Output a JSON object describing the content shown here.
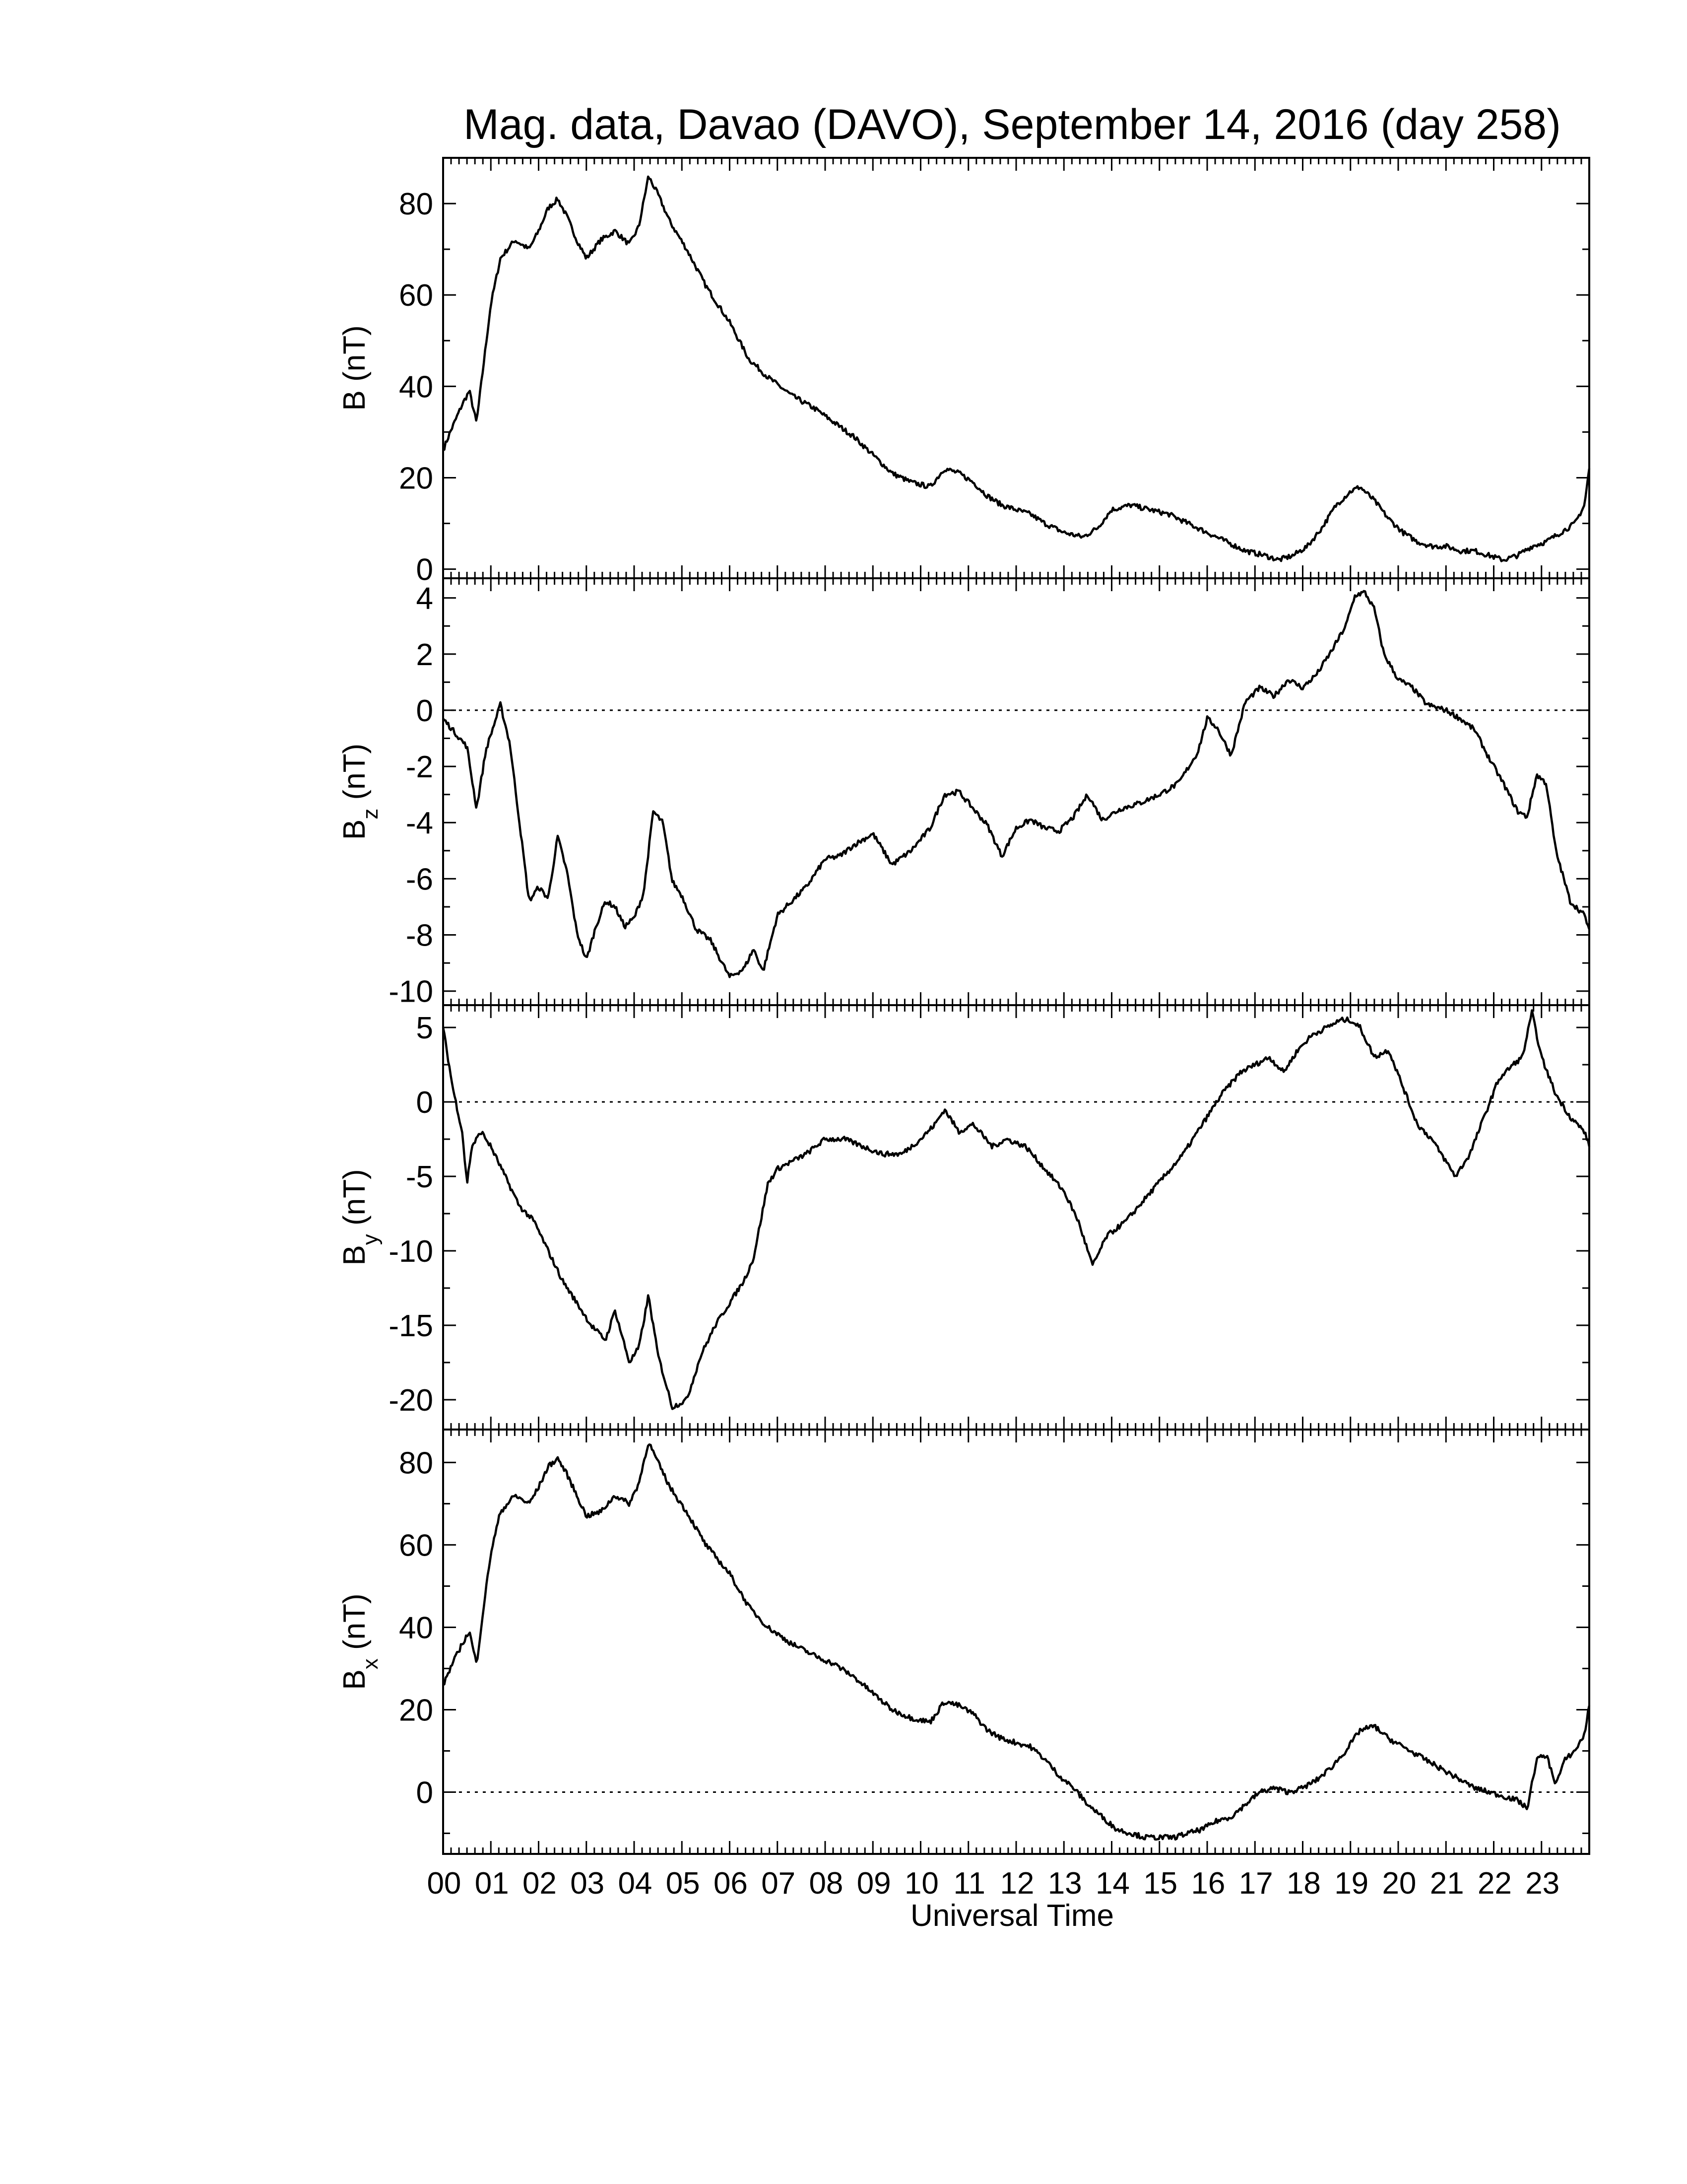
{
  "title": "Mag. data, Davao (DAVO), September 14, 2016 (day 258)",
  "chart_data": [
    {
      "type": "line",
      "ylabel": "B (nT)",
      "ylabel_main": "B",
      "ylabel_sub": "",
      "ylim": [
        -2,
        90
      ],
      "yticks": [
        0,
        20,
        40,
        60,
        80
      ],
      "zero_line": false,
      "x": [
        0.0,
        0.15,
        0.4,
        0.55,
        0.7,
        0.85,
        1.0,
        1.2,
        1.5,
        1.8,
        2.0,
        2.2,
        2.4,
        2.6,
        2.8,
        3.0,
        3.3,
        3.6,
        3.9,
        4.1,
        4.3,
        4.5,
        4.75,
        5.1,
        5.5,
        6.0,
        6.4,
        6.8,
        7.3,
        7.8,
        8.2,
        8.6,
        9.0,
        9.4,
        9.8,
        10.2,
        10.5,
        10.8,
        11.1,
        11.4,
        11.7,
        12.0,
        12.3,
        12.6,
        13.0,
        13.4,
        13.7,
        14.0,
        14.4,
        14.8,
        15.2,
        15.6,
        16.0,
        16.4,
        16.8,
        17.2,
        17.5,
        17.8,
        18.1,
        18.4,
        18.7,
        19.0,
        19.2,
        19.5,
        19.8,
        20.1,
        20.4,
        20.7,
        21.0,
        21.3,
        21.6,
        21.9,
        22.2,
        22.5,
        22.8,
        23.1,
        23.4,
        23.7,
        23.9,
        24.0
      ],
      "values": [
        26,
        30,
        36,
        39,
        32,
        45,
        58,
        68,
        72,
        70,
        74,
        79,
        81,
        77,
        72,
        68,
        72,
        74,
        71,
        75,
        86,
        82,
        76,
        70,
        62,
        54,
        46,
        42,
        38,
        35,
        32,
        29,
        25,
        21,
        19,
        18,
        22,
        21,
        19,
        16,
        14,
        13,
        12,
        10,
        8,
        7,
        9,
        13,
        14,
        13,
        12,
        10,
        8,
        6,
        4,
        3,
        2,
        3,
        5,
        9,
        14,
        17,
        18,
        15,
        11,
        8,
        6,
        5,
        5,
        4,
        4,
        3,
        2,
        3,
        5,
        6,
        8,
        10,
        14,
        22
      ]
    },
    {
      "type": "line",
      "ylabel": "Bz (nT)",
      "ylabel_main": "B",
      "ylabel_sub": "z",
      "ylim": [
        -10.5,
        4.7
      ],
      "yticks": [
        -10,
        -8,
        -6,
        -4,
        -2,
        0,
        2,
        4
      ],
      "zero_line": true,
      "x": [
        0.0,
        0.3,
        0.5,
        0.7,
        0.9,
        1.2,
        1.4,
        1.6,
        1.8,
        2.0,
        2.2,
        2.4,
        2.6,
        2.8,
        3.0,
        3.2,
        3.4,
        3.6,
        3.8,
        4.0,
        4.2,
        4.4,
        4.6,
        4.8,
        5.0,
        5.3,
        5.6,
        6.0,
        6.3,
        6.5,
        6.7,
        7.0,
        7.3,
        7.6,
        8.0,
        8.3,
        8.6,
        9.0,
        9.4,
        9.8,
        10.2,
        10.5,
        10.8,
        11.1,
        11.4,
        11.7,
        12.0,
        12.3,
        12.6,
        12.9,
        13.2,
        13.5,
        13.8,
        14.2,
        14.6,
        15.0,
        15.4,
        15.8,
        16.0,
        16.2,
        16.5,
        16.8,
        17.1,
        17.4,
        17.7,
        18.0,
        18.3,
        18.6,
        18.9,
        19.1,
        19.3,
        19.5,
        19.7,
        20.0,
        20.3,
        20.6,
        21.0,
        21.3,
        21.6,
        21.9,
        22.2,
        22.5,
        22.7,
        22.9,
        23.1,
        23.3,
        23.6,
        23.9,
        24.0
      ],
      "values": [
        -0.3,
        -0.9,
        -1.3,
        -3.5,
        -1.4,
        0.2,
        -1.2,
        -4.0,
        -6.8,
        -6.3,
        -6.7,
        -4.5,
        -5.8,
        -7.9,
        -8.9,
        -7.7,
        -6.8,
        -7.0,
        -7.7,
        -7.4,
        -6.5,
        -3.6,
        -4.0,
        -6.1,
        -6.6,
        -7.8,
        -8.2,
        -9.5,
        -9.2,
        -8.5,
        -9.3,
        -7.3,
        -6.8,
        -6.3,
        -5.3,
        -5.2,
        -4.8,
        -4.4,
        -5.5,
        -5.0,
        -4.2,
        -3.0,
        -2.9,
        -3.5,
        -4.1,
        -5.2,
        -4.2,
        -3.9,
        -4.2,
        -4.3,
        -3.8,
        -3.0,
        -3.9,
        -3.5,
        -3.3,
        -3.0,
        -2.6,
        -1.5,
        -0.3,
        -0.6,
        -1.6,
        0.3,
        0.8,
        0.5,
        1.1,
        0.8,
        1.3,
        2.1,
        3.0,
        4.1,
        4.2,
        3.6,
        2.0,
        1.1,
        0.8,
        0.2,
        0.0,
        -0.3,
        -0.7,
        -1.7,
        -2.6,
        -3.6,
        -3.8,
        -2.3,
        -2.6,
        -5.0,
        -6.8,
        -7.3,
        -7.8
      ]
    },
    {
      "type": "line",
      "ylabel": "By (nT)",
      "ylabel_main": "B",
      "ylabel_sub": "y",
      "ylim": [
        -22,
        6.5
      ],
      "yticks": [
        -20,
        -15,
        -10,
        -5,
        0,
        5
      ],
      "zero_line": true,
      "x": [
        0.0,
        0.2,
        0.4,
        0.5,
        0.6,
        0.8,
        1.0,
        1.3,
        1.6,
        1.9,
        2.2,
        2.5,
        2.8,
        3.1,
        3.4,
        3.6,
        3.9,
        4.1,
        4.3,
        4.5,
        4.8,
        5.1,
        5.4,
        5.7,
        6.0,
        6.3,
        6.5,
        6.8,
        7.0,
        7.3,
        7.6,
        8.0,
        8.4,
        8.8,
        9.2,
        9.6,
        10.0,
        10.3,
        10.5,
        10.8,
        11.1,
        11.5,
        11.8,
        12.2,
        12.6,
        13.0,
        13.3,
        13.6,
        13.9,
        14.3,
        14.7,
        15.1,
        15.5,
        15.9,
        16.3,
        16.7,
        17.0,
        17.3,
        17.6,
        17.9,
        18.2,
        18.5,
        18.8,
        19.0,
        19.2,
        19.5,
        19.8,
        20.1,
        20.4,
        20.7,
        21.0,
        21.2,
        21.5,
        21.8,
        22.1,
        22.4,
        22.6,
        22.8,
        23.0,
        23.3,
        23.6,
        23.9,
        24.0
      ],
      "values": [
        5,
        1,
        -2,
        -5.5,
        -3,
        -2,
        -3,
        -5,
        -7,
        -8,
        -10,
        -12,
        -13.5,
        -15,
        -16,
        -14,
        -17.5,
        -16.5,
        -13,
        -17,
        -20.5,
        -20,
        -17,
        -15,
        -13.5,
        -12,
        -10.5,
        -5.5,
        -4.5,
        -4,
        -3.5,
        -2.5,
        -2.5,
        -3,
        -3.5,
        -3.5,
        -2.5,
        -1.5,
        -0.5,
        -2,
        -1.5,
        -3,
        -2.5,
        -3,
        -4.5,
        -6,
        -8,
        -11,
        -9,
        -8,
        -6.5,
        -5,
        -3.5,
        -1.5,
        0.5,
        2,
        2.5,
        3,
        2,
        3.5,
        4.5,
        5,
        5.5,
        5.5,
        5,
        3,
        3.5,
        1,
        -1.5,
        -2.5,
        -4,
        -5,
        -3.5,
        -1,
        1.5,
        2.5,
        3,
        6,
        3,
        0.5,
        -1,
        -2,
        -3
      ]
    },
    {
      "type": "line",
      "ylabel": "Bx (nT)",
      "ylabel_main": "B",
      "ylabel_sub": "x",
      "ylim": [
        -15,
        88
      ],
      "yticks": [
        0,
        20,
        40,
        60,
        80
      ],
      "zero_line": true,
      "x": [
        0.0,
        0.15,
        0.4,
        0.55,
        0.7,
        0.85,
        1.0,
        1.2,
        1.5,
        1.8,
        2.0,
        2.2,
        2.4,
        2.6,
        2.8,
        3.0,
        3.3,
        3.6,
        3.9,
        4.1,
        4.3,
        4.5,
        4.75,
        5.1,
        5.5,
        6.0,
        6.4,
        6.8,
        7.3,
        7.8,
        8.2,
        8.6,
        9.0,
        9.4,
        9.8,
        10.2,
        10.5,
        10.8,
        11.1,
        11.4,
        11.7,
        12.0,
        12.3,
        12.6,
        12.9,
        13.2,
        13.5,
        13.8,
        14.1,
        14.4,
        14.7,
        15.0,
        15.3,
        15.6,
        15.9,
        16.2,
        16.5,
        16.8,
        17.1,
        17.4,
        17.7,
        18.0,
        18.3,
        18.6,
        18.9,
        19.2,
        19.5,
        19.8,
        20.1,
        20.4,
        20.7,
        21.0,
        21.3,
        21.6,
        21.9,
        22.2,
        22.5,
        22.7,
        22.9,
        23.1,
        23.3,
        23.5,
        23.7,
        23.9,
        24.0
      ],
      "values": [
        26,
        30,
        36,
        39,
        31,
        45,
        58,
        68,
        72,
        70,
        74,
        79,
        81,
        77,
        72,
        67,
        68,
        72,
        70,
        75,
        85,
        80,
        74,
        68,
        60,
        53,
        45,
        40,
        36,
        33,
        31,
        28,
        24,
        20,
        18,
        17,
        22,
        21,
        19,
        15,
        13,
        12,
        11,
        8,
        4,
        1,
        -3,
        -6,
        -9,
        -10,
        -11,
        -11,
        -11,
        -10,
        -9,
        -7,
        -6,
        -3,
        0,
        1,
        0,
        1,
        3,
        6,
        10,
        15,
        16,
        13,
        11,
        9,
        7,
        5,
        3,
        1,
        0,
        -1,
        -2,
        -4,
        8,
        9,
        2,
        8,
        10,
        14,
        21
      ]
    }
  ],
  "x_axis": {
    "xlim": [
      0,
      24
    ],
    "tick_labels": [
      "00",
      "01",
      "02",
      "03",
      "04",
      "05",
      "06",
      "07",
      "08",
      "09",
      "10",
      "11",
      "12",
      "13",
      "14",
      "15",
      "16",
      "17",
      "18",
      "19",
      "20",
      "21",
      "22",
      "23"
    ],
    "xlabel": "Universal Time"
  },
  "ylabel_units": "(nT)"
}
